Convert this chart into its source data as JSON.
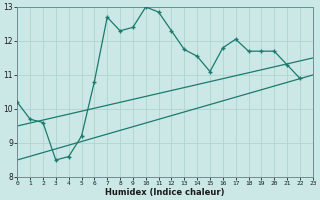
{
  "xlabel": "Humidex (Indice chaleur)",
  "bg_color": "#cce8e6",
  "grid_color": "#afd4d0",
  "line_color": "#1a7a6e",
  "xlim": [
    0,
    23
  ],
  "ylim": [
    8,
    13
  ],
  "xticks": [
    0,
    1,
    2,
    3,
    4,
    5,
    6,
    7,
    8,
    9,
    10,
    11,
    12,
    13,
    14,
    15,
    16,
    17,
    18,
    19,
    20,
    21,
    22,
    23
  ],
  "yticks": [
    8,
    9,
    10,
    11,
    12,
    13
  ],
  "main_x": [
    0,
    1,
    2,
    3,
    4,
    5,
    6,
    7,
    8,
    9,
    10,
    11,
    12,
    13,
    14,
    15,
    16,
    17,
    18,
    19,
    20,
    21,
    22
  ],
  "main_y": [
    10.2,
    9.7,
    9.6,
    8.5,
    8.6,
    9.2,
    10.8,
    12.7,
    12.3,
    12.4,
    13.0,
    12.85,
    12.3,
    11.75,
    11.55,
    11.1,
    11.8,
    12.05,
    11.7,
    11.7,
    11.7,
    11.3,
    10.9
  ],
  "line2_x": [
    0,
    23
  ],
  "line2_y": [
    8.5,
    11.0
  ],
  "line3_x": [
    0,
    23
  ],
  "line3_y": [
    9.5,
    11.5
  ]
}
